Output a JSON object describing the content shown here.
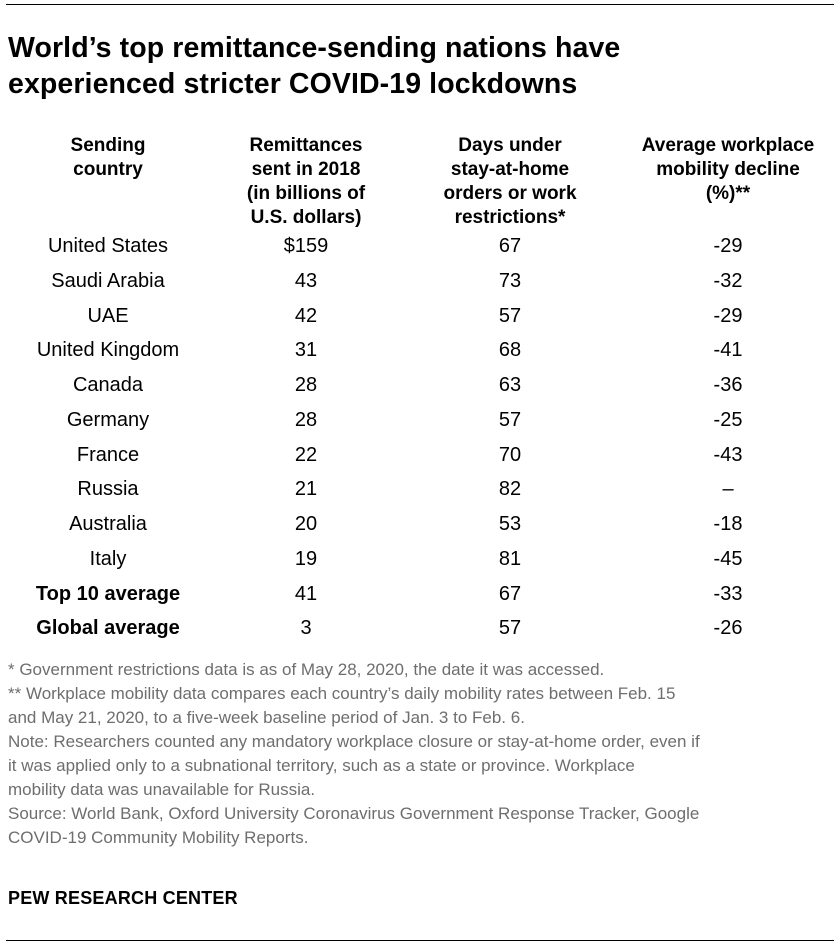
{
  "title_lines": [
    "World’s top remittance-sending nations have",
    "experienced stricter COVID-19 lockdowns"
  ],
  "chart_data": {
    "type": "table",
    "columns": [
      {
        "lines": [
          "Sending",
          "country"
        ]
      },
      {
        "lines": [
          "Remittances",
          "sent in 2018",
          "(in billions of",
          "U.S. dollars)"
        ]
      },
      {
        "lines": [
          "Days under",
          "stay-at-home",
          "orders or work",
          "restrictions*"
        ]
      },
      {
        "lines": [
          "Average workplace",
          "mobility decline",
          "(%)**"
        ]
      }
    ],
    "rows": [
      {
        "country": "United States",
        "remittances": "$159",
        "days": "67",
        "mobility": "-29",
        "bold": false
      },
      {
        "country": "Saudi Arabia",
        "remittances": "43",
        "days": "73",
        "mobility": "-32",
        "bold": false
      },
      {
        "country": "UAE",
        "remittances": "42",
        "days": "57",
        "mobility": "-29",
        "bold": false
      },
      {
        "country": "United Kingdom",
        "remittances": "31",
        "days": "68",
        "mobility": "-41",
        "bold": false
      },
      {
        "country": "Canada",
        "remittances": "28",
        "days": "63",
        "mobility": "-36",
        "bold": false
      },
      {
        "country": "Germany",
        "remittances": "28",
        "days": "57",
        "mobility": "-25",
        "bold": false
      },
      {
        "country": "France",
        "remittances": "22",
        "days": "70",
        "mobility": "-43",
        "bold": false
      },
      {
        "country": "Russia",
        "remittances": "21",
        "days": "82",
        "mobility": "–",
        "bold": false
      },
      {
        "country": "Australia",
        "remittances": "20",
        "days": "53",
        "mobility": "-18",
        "bold": false
      },
      {
        "country": "Italy",
        "remittances": "19",
        "days": "81",
        "mobility": "-45",
        "bold": false
      },
      {
        "country": "Top 10 average",
        "remittances": "41",
        "days": "67",
        "mobility": "-33",
        "bold": true
      },
      {
        "country": "Global average",
        "remittances": "3",
        "days": "57",
        "mobility": "-26",
        "bold": true
      }
    ]
  },
  "notes_lines": [
    "* Government restrictions data is as of May 28, 2020, the date it was accessed.",
    "** Workplace mobility data compares each country’s daily mobility rates between Feb. 15",
    "and May 21, 2020, to a five-week baseline period of Jan. 3 to Feb. 6.",
    "Note: Researchers counted any mandatory workplace closure or stay-at-home order, even if",
    "it was applied only to a subnational territory, such as a state or province. Workplace",
    "mobility data was unavailable for Russia.",
    "Source: World Bank, Oxford University Coronavirus Government Response Tracker, Google",
    "COVID-19 Community Mobility Reports."
  ],
  "brand": "PEW RESEARCH CENTER",
  "colors": {
    "text": "#000000",
    "notes": "#6e6e6e",
    "rule": "#000000"
  }
}
